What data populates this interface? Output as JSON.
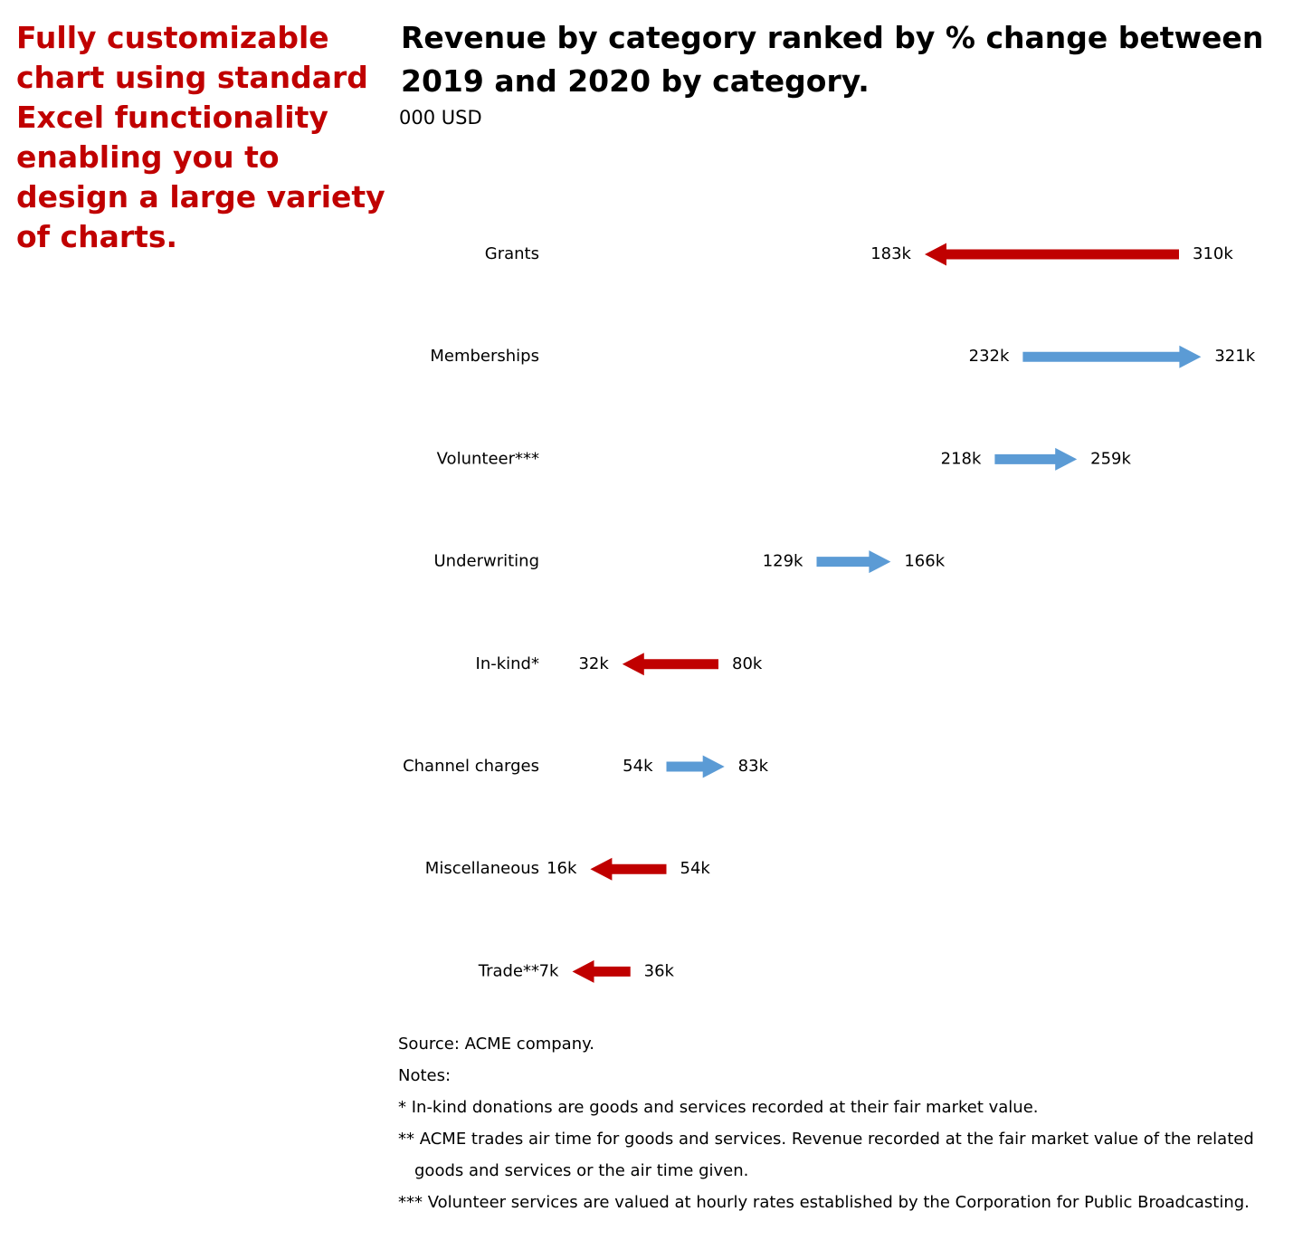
{
  "promo_text": "Fully customizable chart using standard Excel functionality enabling you to design a large variety of charts.",
  "chart_data": {
    "type": "arrow-change",
    "title": "Revenue by category ranked by % change between 2019 and 2020 by category.",
    "unit": "000 USD",
    "colors": {
      "increase": "#5b9bd5",
      "decrease": "#c00000"
    },
    "categories": [
      "Grants",
      "Memberships",
      "Volunteer***",
      "Underwriting",
      "In-kind*",
      "Channel charges",
      "Miscellaneous",
      "Trade**"
    ],
    "series": [
      {
        "values": [
          310,
          232,
          218,
          129,
          80,
          54,
          54,
          36
        ]
      },
      {
        "values": [
          183,
          321,
          259,
          166,
          32,
          83,
          16,
          7
        ]
      }
    ],
    "value_labels_start": [
      "310k",
      "232k",
      "218k",
      "129k",
      "80k",
      "54k",
      "54k",
      "36k"
    ],
    "value_labels_end": [
      "183k",
      "321k",
      "259k",
      "166k",
      "32k",
      "83k",
      "16k",
      "7k"
    ]
  },
  "footer": {
    "source": "Source: ACME company.",
    "notes_heading": "Notes:",
    "note1": "* In-kind donations are goods and services recorded at their fair market value.",
    "note2_line1": "** ACME trades air time for goods and services. Revenue recorded at the fair market value of the related",
    "note2_line2": "goods and services or the air time given.",
    "note3": "*** Volunteer services are valued at hourly rates established by the Corporation for Public Broadcasting."
  }
}
